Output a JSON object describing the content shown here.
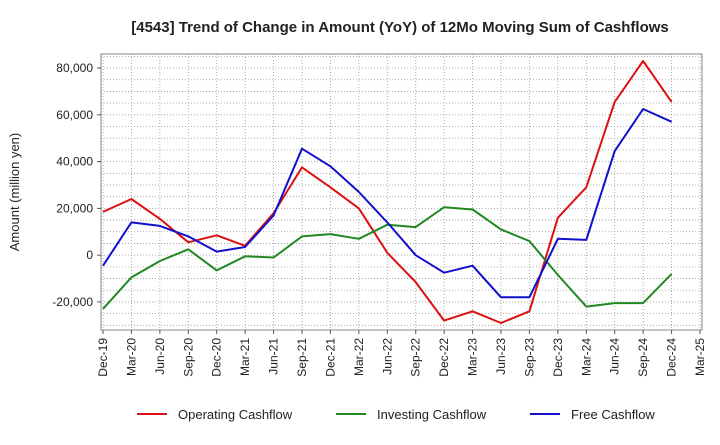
{
  "chart_data": {
    "type": "line",
    "title": "[4543]  Trend of Change in Amount (YoY) of 12Mo Moving Sum of Cashflows",
    "xlabel": "",
    "ylabel": "Amount (million yen)",
    "ylim": [
      -32000,
      86000
    ],
    "yticks": [
      -20000,
      0,
      20000,
      40000,
      60000,
      80000
    ],
    "ytick_labels": [
      "-20,000",
      "0",
      "20,000",
      "40,000",
      "60,000",
      "80,000"
    ],
    "categories": [
      "Dec-19",
      "Mar-20",
      "Jun-20",
      "Sep-20",
      "Dec-20",
      "Mar-21",
      "Jun-21",
      "Sep-21",
      "Dec-21",
      "Mar-22",
      "Jun-22",
      "Sep-22",
      "Dec-22",
      "Mar-23",
      "Jun-23",
      "Sep-23",
      "Dec-23",
      "Mar-24",
      "Jun-24",
      "Sep-24",
      "Dec-24",
      "Mar-25"
    ],
    "grid": true,
    "legend_position": "bottom",
    "series": [
      {
        "name": "Operating Cashflow",
        "color": "#dd1111",
        "values": [
          18500,
          24000,
          15500,
          5500,
          8500,
          4000,
          18000,
          37500,
          29000,
          20000,
          1000,
          -11500,
          -28000,
          -24000,
          -29000,
          -24000,
          16000,
          29000,
          65500,
          83000,
          65500,
          null
        ]
      },
      {
        "name": "Investing Cashflow",
        "color": "#228822",
        "values": [
          -23000,
          -9500,
          -2500,
          2500,
          -6500,
          -500,
          -1000,
          8000,
          9000,
          7000,
          13000,
          12000,
          20500,
          19500,
          11000,
          6000,
          -8500,
          -22000,
          -20500,
          -20500,
          -8000,
          null
        ]
      },
      {
        "name": "Free Cashflow",
        "color": "#1111cc",
        "values": [
          -4500,
          14000,
          12500,
          8000,
          1500,
          3500,
          17000,
          45500,
          38000,
          27000,
          14000,
          0,
          -7500,
          -4500,
          -18000,
          -18000,
          7000,
          6500,
          44500,
          62500,
          57000,
          null
        ]
      }
    ]
  }
}
